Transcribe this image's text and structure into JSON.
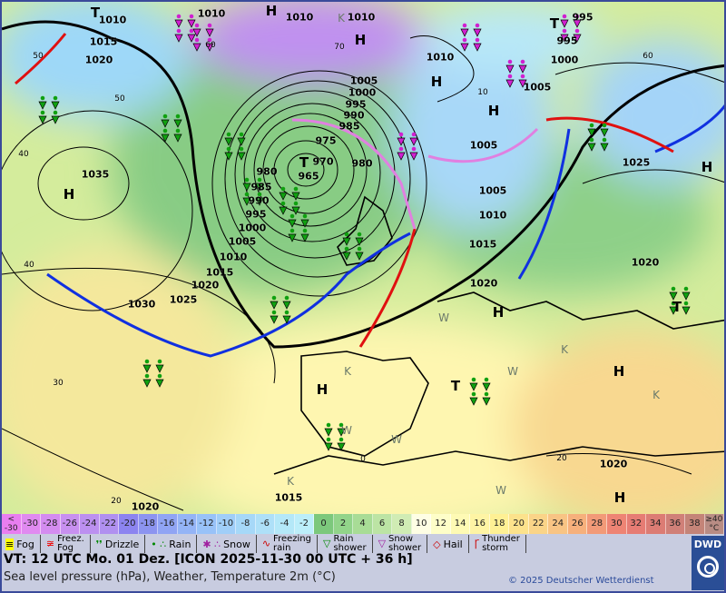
{
  "map": {
    "pressure_labels": [
      "1010",
      "1010",
      "1010",
      "1010",
      "1015",
      "1020",
      "1010",
      "1000",
      "995",
      "995",
      "1005",
      "1005",
      "1000",
      "995",
      "990",
      "985",
      "975",
      "970",
      "965",
      "980",
      "980",
      "985",
      "990",
      "995",
      "1000",
      "1005",
      "1010",
      "1015",
      "1020",
      "1025",
      "1030",
      "1035",
      "1005",
      "1005",
      "1010",
      "1015",
      "1020",
      "1020",
      "1025",
      "1020",
      "1020",
      "1015"
    ],
    "systems": [
      "T",
      "H",
      "K",
      "H",
      "H",
      "H",
      "T",
      "H",
      "H",
      "T",
      "H",
      "W",
      "K",
      "H",
      "T",
      "W",
      "H",
      "K",
      "W",
      "W",
      "K",
      "H",
      "W",
      "T",
      "K"
    ],
    "temperature_labels": [
      "50",
      "60",
      "70",
      "60",
      "50",
      "40",
      "40",
      "30",
      "20",
      "0",
      "20",
      "10"
    ]
  },
  "colorbar": {
    "labels": [
      "<\n-30",
      "-30",
      "-28",
      "-26",
      "-24",
      "-22",
      "-20",
      "-18",
      "-16",
      "-14",
      "-12",
      "-10",
      "-8",
      "-6",
      "-4",
      "-2",
      "0",
      "2",
      "4",
      "6",
      "8",
      "10",
      "12",
      "14",
      "16",
      "18",
      "20",
      "22",
      "24",
      "26",
      "28",
      "30",
      "32",
      "34",
      "36",
      "38",
      "≥40\n°C"
    ],
    "colors": [
      "#e87ef0",
      "#e08af0",
      "#d48cf0",
      "#c890f0",
      "#bc90f0",
      "#b090f0",
      "#8c84f0",
      "#8c94f0",
      "#90a4f4",
      "#94b4f6",
      "#98c2f8",
      "#a0cef8",
      "#a6d8f8",
      "#aee0f8",
      "#b4e8f8",
      "#bceefa",
      "#7cc87c",
      "#92d48a",
      "#a8dc96",
      "#bce4a4",
      "#d0ecb4",
      "#fefee4",
      "#fefec8",
      "#fefab4",
      "#fef4a4",
      "#fef094",
      "#fce28c",
      "#fad488",
      "#f8c484",
      "#f6b07c",
      "#f29a78",
      "#ee8474",
      "#e67c74",
      "#dc7c74",
      "#d08078",
      "#c48478",
      "#b88c84"
    ]
  },
  "legend": {
    "items": [
      {
        "label": "Fog",
        "icon": "fog-icon"
      },
      {
        "label": "Freez.\nFog",
        "icon": "freezing-fog-icon"
      },
      {
        "label": "Drizzle",
        "icon": "drizzle-icon"
      },
      {
        "label": "Rain",
        "icon": "rain-icon"
      },
      {
        "label": "Snow",
        "icon": "snow-icon"
      },
      {
        "label": "Freezing\nrain",
        "icon": "freezing-rain-icon"
      },
      {
        "label": "Rain\nshower",
        "icon": "rain-shower-icon"
      },
      {
        "label": "Snow\nshower",
        "icon": "snow-shower-icon"
      },
      {
        "label": "Hail",
        "icon": "hail-icon"
      },
      {
        "label": "Thunder\nstorm",
        "icon": "thunderstorm-icon"
      }
    ]
  },
  "footer": {
    "valid_time": "VT: 12 UTC Mo.  01 Dez. [ICON 2025-11-30  00 UTC + 36 h]",
    "subtitle": "Sea level pressure (hPa), Weather, Temperature 2m (°C)",
    "copyright": "© 2025 Deutscher Wetterdienst",
    "logo_text": "DWD"
  },
  "colors": {
    "cold_front": "#1030e0",
    "warm_front": "#e01010",
    "occlusion": "#e080e0",
    "frame": "#3a4a9a"
  }
}
